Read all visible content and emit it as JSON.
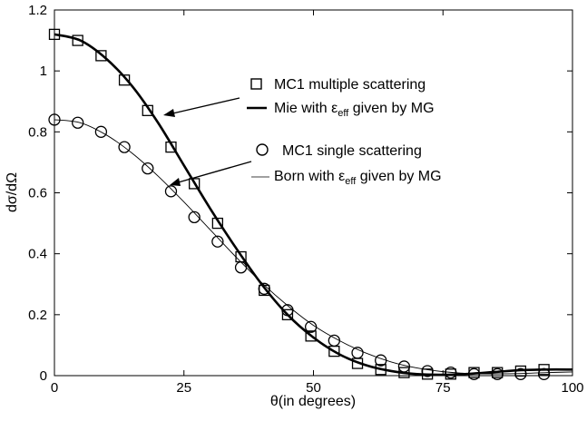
{
  "chart_data": {
    "type": "line",
    "xlabel": "θ(in degrees)",
    "ylabel": "dσ/dΩ",
    "xlim": [
      0,
      100
    ],
    "ylim": [
      0,
      1.2
    ],
    "x_ticks": [
      0,
      25,
      50,
      75,
      100
    ],
    "y_ticks": [
      0,
      0.2,
      0.4,
      0.6,
      0.8,
      1,
      1.2
    ],
    "grid": false,
    "series": [
      {
        "name": "MC1 multiple scattering",
        "kind": "marker",
        "marker": "square",
        "x": [
          0,
          4.5,
          9,
          13.5,
          18,
          22.5,
          27,
          31.5,
          36,
          40.5,
          45,
          49.5,
          54,
          58.5,
          63,
          67.5,
          72,
          76.5,
          81,
          85.5,
          90,
          94.5
        ],
        "y": [
          1.12,
          1.1,
          1.05,
          0.97,
          0.87,
          0.75,
          0.63,
          0.5,
          0.39,
          0.28,
          0.2,
          0.13,
          0.08,
          0.04,
          0.02,
          0.01,
          0.005,
          0.005,
          0.01,
          0.01,
          0.015,
          0.02
        ]
      },
      {
        "name": "Mie with εeff given by MG",
        "kind": "line",
        "width": "thick",
        "x": [
          0,
          5,
          10,
          15,
          20,
          25,
          30,
          35,
          40,
          45,
          50,
          55,
          60,
          65,
          70,
          75,
          80,
          85,
          90,
          95,
          100
        ],
        "y": [
          1.12,
          1.1,
          1.04,
          0.95,
          0.83,
          0.69,
          0.55,
          0.42,
          0.3,
          0.2,
          0.125,
          0.07,
          0.035,
          0.015,
          0.005,
          0.003,
          0.006,
          0.012,
          0.018,
          0.02,
          0.02
        ]
      },
      {
        "name": "MC1 single scattering",
        "kind": "marker",
        "marker": "circle",
        "x": [
          0,
          4.5,
          9,
          13.5,
          18,
          22.5,
          27,
          31.5,
          36,
          40.5,
          45,
          49.5,
          54,
          58.5,
          63,
          67.5,
          72,
          76.5,
          81,
          85.5,
          90,
          94.5
        ],
        "y": [
          0.84,
          0.83,
          0.8,
          0.75,
          0.68,
          0.605,
          0.52,
          0.44,
          0.355,
          0.285,
          0.215,
          0.16,
          0.115,
          0.075,
          0.05,
          0.03,
          0.015,
          0.01,
          0.005,
          0.005,
          0.005,
          0.005
        ]
      },
      {
        "name": "Born with εeff given by MG",
        "kind": "line",
        "width": "thin",
        "x": [
          0,
          5,
          10,
          15,
          20,
          25,
          30,
          35,
          40,
          45,
          50,
          55,
          60,
          65,
          70,
          75,
          80,
          85,
          90,
          95,
          100
        ],
        "y": [
          0.84,
          0.83,
          0.79,
          0.73,
          0.655,
          0.57,
          0.48,
          0.39,
          0.305,
          0.23,
          0.165,
          0.115,
          0.075,
          0.045,
          0.025,
          0.013,
          0.007,
          0.006,
          0.007,
          0.01,
          0.012
        ]
      }
    ],
    "legend": [
      {
        "text": "MC1 multiple scattering",
        "symbol": "square"
      },
      {
        "text_before": "Mie with ",
        "eps": "ε",
        "sub": "eff",
        "text_after": " given by MG",
        "symbol": "thick-line"
      },
      {
        "text": "MC1 single scattering",
        "symbol": "circle"
      },
      {
        "text_before": "Born with ",
        "eps": "ε",
        "sub": "eff",
        "text_after": " given by MG",
        "symbol": "thin-line"
      }
    ],
    "legend_placement": "center-right"
  }
}
